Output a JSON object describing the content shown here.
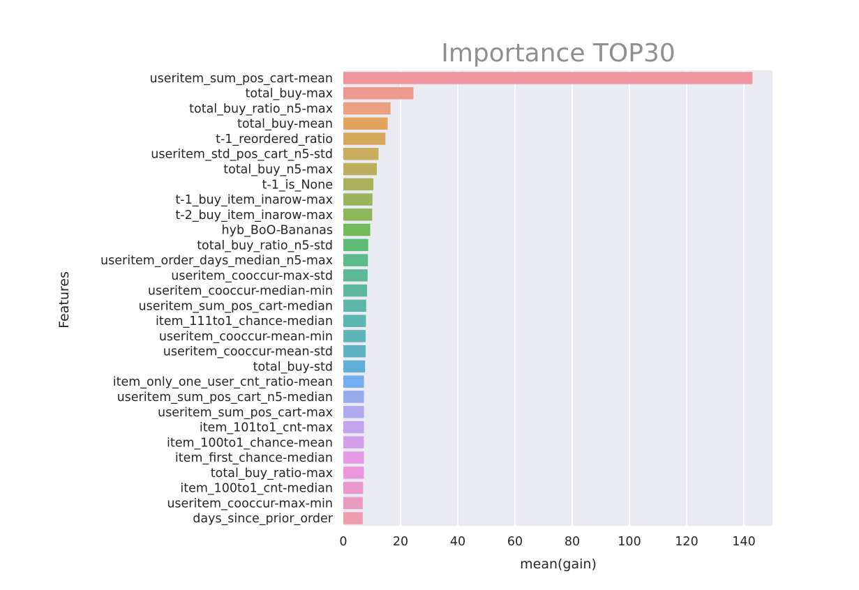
{
  "chart_data": {
    "type": "bar",
    "orientation": "horizontal",
    "title": "Importance TOP30",
    "xlabel": "mean(gain)",
    "ylabel": "Features",
    "xlim": [
      0,
      150
    ],
    "xticks": [
      "0",
      "20",
      "40",
      "60",
      "80",
      "100",
      "120",
      "140"
    ],
    "grid": true,
    "background_color": "#eaeaf2",
    "categories": [
      "useritem_sum_pos_cart-mean",
      "total_buy-max",
      "total_buy_ratio_n5-max",
      "total_buy-mean",
      "t-1_reordered_ratio",
      "useritem_std_pos_cart_n5-std",
      "total_buy_n5-max",
      "t-1_is_None",
      "t-1_buy_item_inarow-max",
      "t-2_buy_item_inarow-max",
      "hyb_BoO-Bananas",
      "total_buy_ratio_n5-std",
      "useritem_order_days_median_n5-max",
      "useritem_cooccur-max-std",
      "useritem_cooccur-median-min",
      "useritem_sum_pos_cart-median",
      "item_111to1_chance-median",
      "useritem_cooccur-mean-min",
      "useritem_cooccur-mean-std",
      "total_buy-std",
      "item_only_one_user_cnt_ratio-mean",
      "useritem_sum_pos_cart_n5-median",
      "useritem_sum_pos_cart-max",
      "item_101to1_cnt-max",
      "item_100to1_chance-mean",
      "item_first_chance-median",
      "total_buy_ratio-max",
      "item_100to1_cnt-median",
      "useritem_cooccur-max-min",
      "days_since_prior_order"
    ],
    "values": [
      143.0,
      24.5,
      16.5,
      15.5,
      14.7,
      12.3,
      11.7,
      10.5,
      10.2,
      10.1,
      9.4,
      8.7,
      8.6,
      8.5,
      8.3,
      8.0,
      7.9,
      7.8,
      7.8,
      7.6,
      7.2,
      7.2,
      7.2,
      7.2,
      7.2,
      7.2,
      7.2,
      6.9,
      6.8,
      6.8
    ],
    "colors": [
      "#ef959d",
      "#ec9a8f",
      "#e99f80",
      "#e2a35f",
      "#d6a85c",
      "#c8ad5c",
      "#bcaf5b",
      "#aab15b",
      "#9ab45b",
      "#8cb75b",
      "#73ba5b",
      "#5ebb73",
      "#5cba8c",
      "#5cb996",
      "#5cb89f",
      "#5cb7a8",
      "#5cb6b0",
      "#5db5b9",
      "#5eb3c3",
      "#5eb0d4",
      "#74aef0",
      "#96abed",
      "#b0a8ec",
      "#c4a4ec",
      "#d49fea",
      "#e599e6",
      "#ea97dd",
      "#ea99cd",
      "#eb9bbf",
      "#ed9dae"
    ]
  }
}
